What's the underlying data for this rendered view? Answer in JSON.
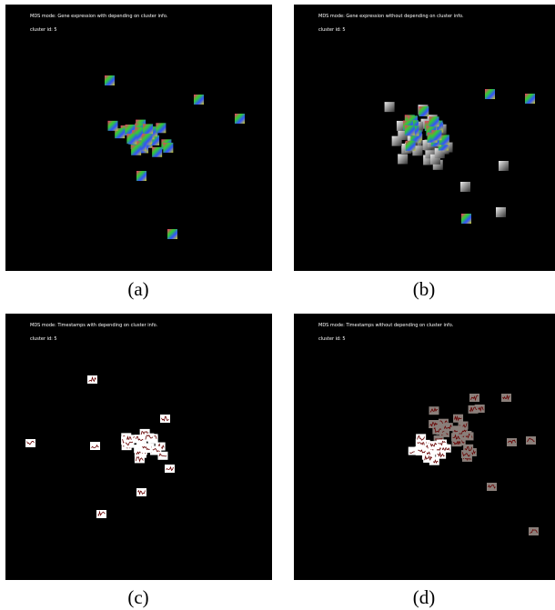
{
  "panels": [
    {
      "mode": "MDS mode: Gene expression with depending on cluster info.",
      "cluster": "cluster id: 5",
      "caption": "(a)"
    },
    {
      "mode": "MDS mode: Gene expression without depending on cluster info.",
      "cluster": "cluster id: 5",
      "caption": "(b)"
    },
    {
      "mode": "MDS mode: Timestamps with depending on cluster info.",
      "cluster": "cluster id: 5",
      "caption": "(c)"
    },
    {
      "mode": "MDS mode: Timestamps without depending on cluster info.",
      "cluster": "cluster id: 5",
      "caption": "(d)"
    }
  ]
}
